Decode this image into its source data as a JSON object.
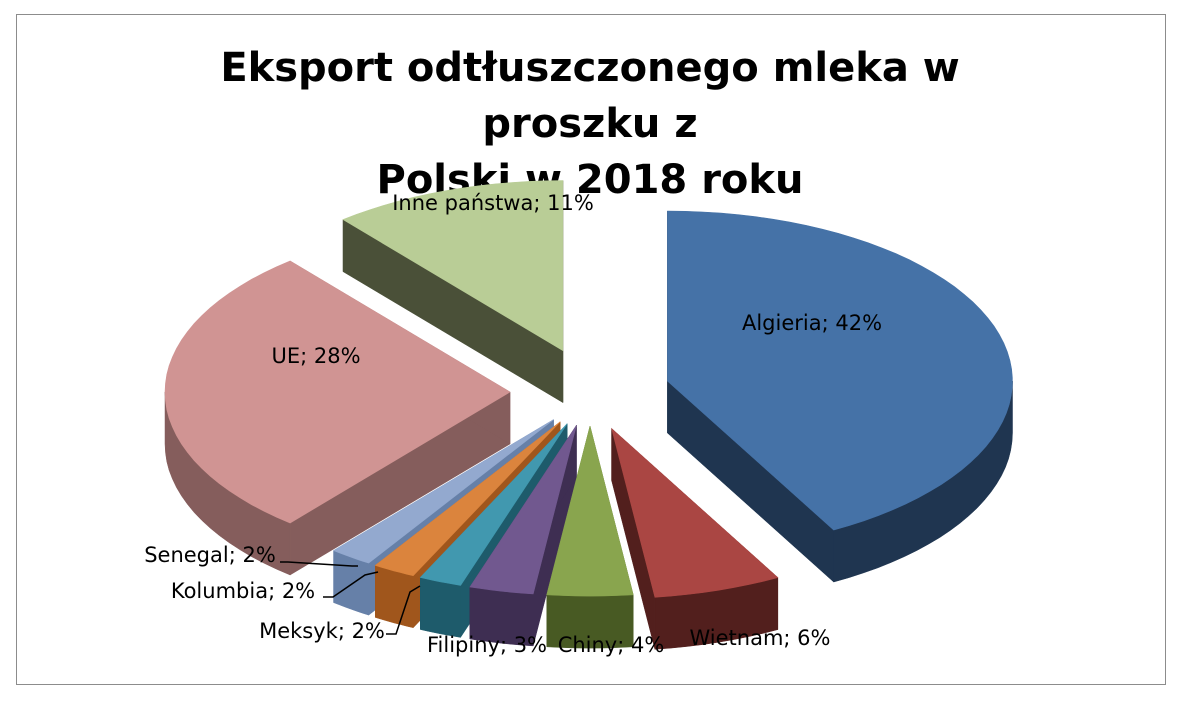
{
  "chart_data": {
    "type": "pie",
    "title": "Eksport odtłuszczonego mleka w proszku z\nPolski w 2018 roku",
    "label_separator": "; ",
    "slices": [
      {
        "name": "Algieria",
        "value": 42,
        "label": "42%",
        "color": "#4572A7",
        "side": "#1F3550"
      },
      {
        "name": "Wietnam",
        "value": 6,
        "label": "6%",
        "color": "#AA4643",
        "side": "#521F1D"
      },
      {
        "name": "Chiny",
        "value": 4,
        "label": "4%",
        "color": "#89A54E",
        "side": "#485A23"
      },
      {
        "name": "Filipiny",
        "value": 3,
        "label": "3%",
        "color": "#71588F",
        "side": "#3E2E52"
      },
      {
        "name": "Meksyk",
        "value": 2,
        "label": "2%",
        "color": "#4198AF",
        "side": "#1E5B6B"
      },
      {
        "name": "Kolumbia",
        "value": 2,
        "label": "2%",
        "color": "#DB843D",
        "side": "#A0561C"
      },
      {
        "name": "Senegal",
        "value": 2,
        "label": "2%",
        "color": "#93A9CF",
        "side": "#6680A8"
      },
      {
        "name": "UE",
        "value": 28,
        "label": "28%",
        "color": "#D09493",
        "side": "#855D5C"
      },
      {
        "name": "Inne państwa",
        "value": 11,
        "label": "11%",
        "color": "#B9CD96",
        "side": "#4A5038"
      }
    ]
  }
}
